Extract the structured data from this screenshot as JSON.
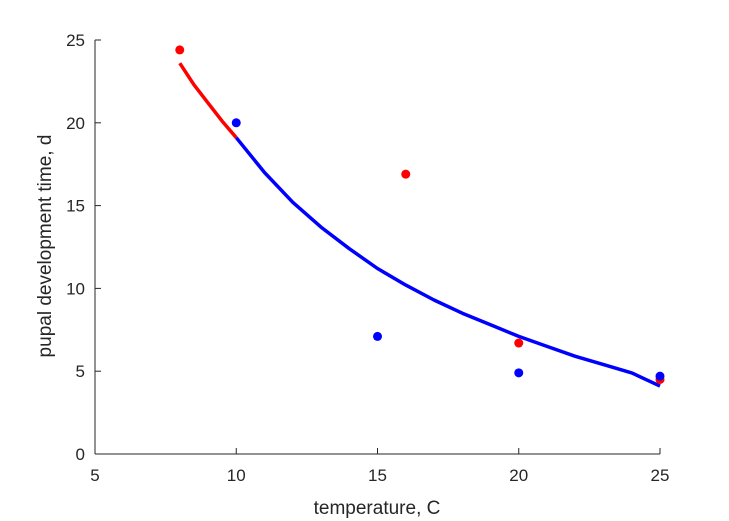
{
  "chart_data": {
    "type": "scatter",
    "title": "",
    "xlabel": "temperature, C",
    "ylabel": "pupal development time, d",
    "xlim": [
      5,
      25
    ],
    "ylim": [
      0,
      25
    ],
    "xticks": [
      5,
      10,
      15,
      20,
      25
    ],
    "yticks": [
      0,
      5,
      10,
      15,
      20,
      25
    ],
    "grid": false,
    "series": [
      {
        "color": "#ff0000",
        "kind": "scatter",
        "points": [
          [
            8,
            24.4
          ],
          [
            16,
            16.9
          ],
          [
            20,
            6.7
          ],
          [
            25,
            4.5
          ]
        ]
      },
      {
        "color": "#0000ff",
        "kind": "scatter",
        "points": [
          [
            10,
            20.0
          ],
          [
            15,
            7.1
          ],
          [
            20,
            4.9
          ],
          [
            25,
            4.7
          ]
        ]
      },
      {
        "color": "#ff0000",
        "kind": "line",
        "x": [
          8,
          8.5,
          9,
          9.5,
          10
        ],
        "y": [
          23.6,
          22.3,
          21.2,
          20.1,
          19.1
        ]
      },
      {
        "color": "#0000ff",
        "kind": "line",
        "x": [
          10,
          11,
          12,
          13,
          14,
          15,
          16,
          17,
          18,
          19,
          20,
          21,
          22,
          23,
          24,
          25
        ],
        "y": [
          19.1,
          17.0,
          15.2,
          13.7,
          12.4,
          11.2,
          10.2,
          9.3,
          8.5,
          7.8,
          7.1,
          6.5,
          5.9,
          5.4,
          4.9,
          4.1
        ]
      }
    ]
  }
}
